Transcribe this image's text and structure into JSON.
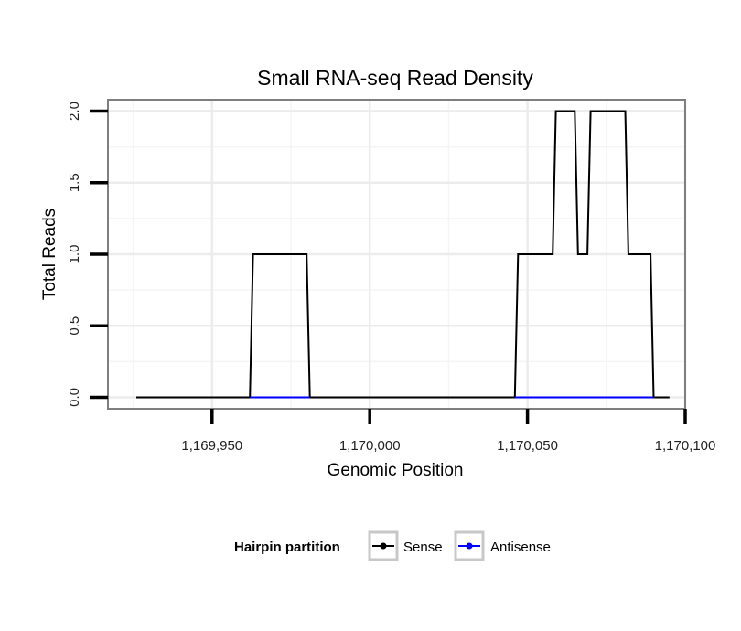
{
  "chart_data": {
    "type": "line",
    "title": "Small RNA-seq Read Density",
    "xlabel": "Genomic Position",
    "ylabel": "Total Reads",
    "xlim": [
      1169917,
      1170100
    ],
    "ylim": [
      -0.08,
      2.08
    ],
    "x_ticks": [
      1169950,
      1170000,
      1170050,
      1170100
    ],
    "x_tick_labels": [
      "1,169,950",
      "1,170,000",
      "1,170,050",
      "1,170,100"
    ],
    "y_ticks": [
      0.0,
      0.5,
      1.0,
      1.5,
      2.0
    ],
    "y_tick_labels": [
      "0.0",
      "0.5",
      "1.0",
      "1.5",
      "2.0"
    ],
    "grid": true,
    "legend": {
      "title": "Hairpin partition",
      "position": "bottom",
      "entries": [
        {
          "name": "Sense",
          "color": "#000000"
        },
        {
          "name": "Antisense",
          "color": "#0000ff"
        }
      ]
    },
    "series": [
      {
        "name": "Sense",
        "color": "#000000",
        "x": [
          1169926,
          1169962,
          1169963,
          1169980,
          1169981,
          1170046,
          1170047,
          1170058,
          1170059,
          1170065,
          1170066,
          1170069,
          1170070,
          1170081,
          1170082,
          1170089,
          1170090,
          1170095
        ],
        "y": [
          0,
          0,
          1,
          1,
          0,
          0,
          1,
          1,
          2,
          2,
          1,
          1,
          2,
          2,
          1,
          1,
          0,
          0
        ]
      },
      {
        "name": "Antisense",
        "color": "#0000ff",
        "segments": [
          [
            1169962,
            1169981
          ],
          [
            1170046,
            1170090
          ]
        ],
        "value": 0
      }
    ]
  }
}
